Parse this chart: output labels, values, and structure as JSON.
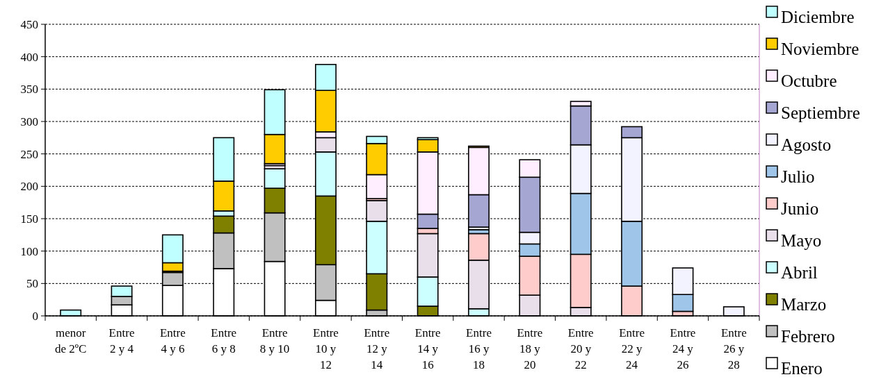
{
  "chart_data": {
    "type": "bar",
    "stacked": true,
    "categories": [
      "menor de 2ºC",
      "Entre 2 y 4",
      "Entre 4 y 6",
      "Entre 6 y 8",
      "Entre 8 y 10",
      "Entre 10 y 12",
      "Entre 12 y 14",
      "Entre 14 y 16",
      "Entre 16 y 18",
      "Entre 18 y 20",
      "Entre 20 y 22",
      "Entre 22 y 24",
      "Entre 24 y 26",
      "Entre 26 y 28"
    ],
    "series": [
      {
        "name": "Enero",
        "color": "#ffffff",
        "values": [
          null,
          17,
          47,
          73,
          84,
          24,
          null,
          null,
          null,
          null,
          null,
          null,
          null,
          null
        ]
      },
      {
        "name": "Febrero",
        "color": "#c0c0c0",
        "values": [
          null,
          13,
          20,
          55,
          75,
          55,
          9,
          null,
          null,
          null,
          null,
          null,
          null,
          null
        ]
      },
      {
        "name": "Marzo",
        "color": "#808000",
        "values": [
          null,
          null,
          2,
          26,
          38,
          106,
          56,
          15,
          null,
          null,
          null,
          null,
          null,
          null
        ]
      },
      {
        "name": "Abril",
        "color": "#ccffff",
        "values": [
          null,
          null,
          null,
          8,
          30,
          68,
          81,
          45,
          11,
          null,
          null,
          null,
          null,
          null
        ]
      },
      {
        "name": "Mayo",
        "color": "#e8dfea",
        "values": [
          null,
          null,
          null,
          null,
          5,
          22,
          32,
          67,
          75,
          32,
          13,
          null,
          null,
          null
        ]
      },
      {
        "name": "Junio",
        "color": "#ffcccc",
        "values": [
          null,
          null,
          null,
          null,
          null,
          null,
          3,
          8,
          41,
          60,
          82,
          46,
          7,
          null
        ]
      },
      {
        "name": "Julio",
        "color": "#9fc5e8",
        "values": [
          null,
          null,
          null,
          null,
          null,
          null,
          null,
          null,
          6,
          19,
          94,
          100,
          26,
          null
        ]
      },
      {
        "name": "Agosto",
        "color": "#f3f3ff",
        "values": [
          null,
          null,
          null,
          null,
          null,
          null,
          null,
          null,
          4,
          18,
          75,
          129,
          41,
          14
        ]
      },
      {
        "name": "Septiembre",
        "color": "#a6a6d2",
        "values": [
          null,
          null,
          null,
          null,
          null,
          null,
          null,
          22,
          50,
          85,
          60,
          17,
          null,
          null
        ]
      },
      {
        "name": "Octubre",
        "color": "#ffeeff",
        "values": [
          null,
          null,
          null,
          null,
          3,
          9,
          37,
          96,
          73,
          27,
          7,
          null,
          null,
          null
        ]
      },
      {
        "name": "Noviembre",
        "color": "#ffcc00",
        "values": [
          null,
          null,
          13,
          46,
          45,
          64,
          48,
          19,
          2,
          null,
          null,
          null,
          null,
          null
        ]
      },
      {
        "name": "Diciembre",
        "color": "#c0ffff",
        "values": [
          9,
          16,
          43,
          67,
          69,
          40,
          11,
          3,
          null,
          null,
          null,
          null,
          null,
          null
        ]
      }
    ],
    "ylim": [
      0,
      450
    ],
    "yticks": [
      0,
      50,
      100,
      150,
      200,
      250,
      300,
      350,
      400,
      450
    ],
    "grid": "y",
    "legend": "right"
  }
}
